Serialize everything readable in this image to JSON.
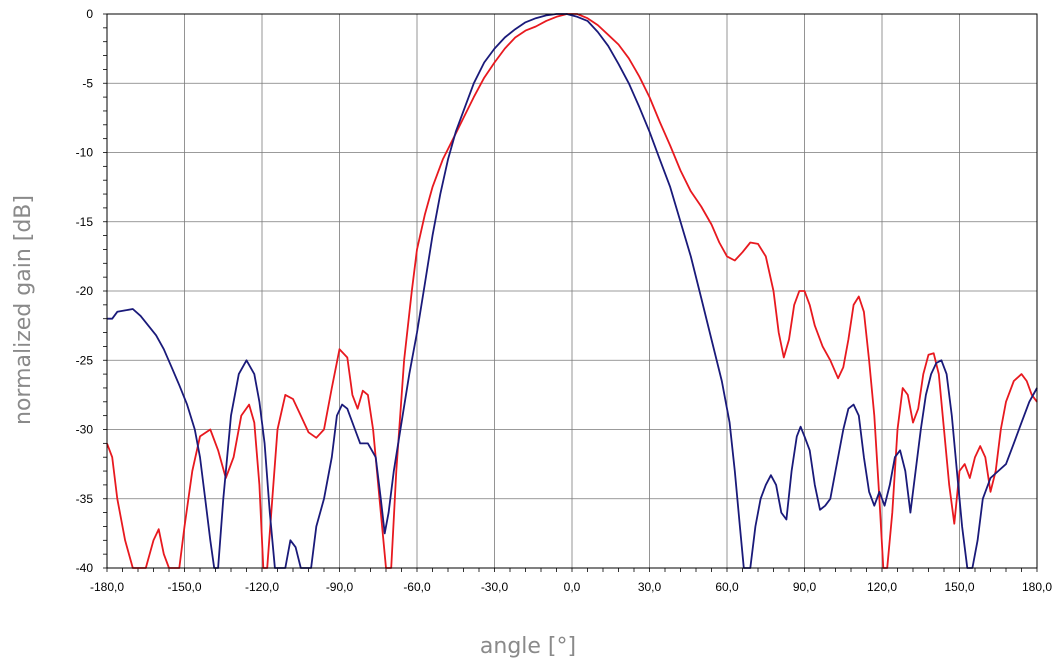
{
  "chart_data": {
    "type": "line",
    "title": "",
    "xlabel": "angle [°]",
    "ylabel": "normalized gain [dB]",
    "xlim": [
      -180,
      180
    ],
    "ylim": [
      -40,
      0
    ],
    "grid": true,
    "x_ticks": [
      -180,
      -150,
      -120,
      -90,
      -60,
      -30,
      0,
      30,
      60,
      90,
      120,
      150,
      180
    ],
    "x_tick_labels": [
      "-180,0",
      "-150,0",
      "-120,0",
      "-90,0",
      "-60,0",
      "-30,0",
      "0,0",
      "30,0",
      "60,0",
      "90,0",
      "120,0",
      "150,0",
      "180,0"
    ],
    "y_ticks": [
      0,
      -5,
      -10,
      -15,
      -20,
      -25,
      -30,
      -35,
      -40
    ],
    "y_tick_labels": [
      "0",
      "-5",
      "-10",
      "-15",
      "-20",
      "-25",
      "-30",
      "-35",
      "-40"
    ],
    "series": [
      {
        "color": "#e8191f",
        "points": [
          [
            -180,
            -31
          ],
          [
            -178,
            -32
          ],
          [
            -176,
            -35
          ],
          [
            -173,
            -38
          ],
          [
            -170,
            -40
          ],
          [
            -165,
            -40
          ],
          [
            -162,
            -38
          ],
          [
            -160,
            -37.2
          ],
          [
            -158,
            -39
          ],
          [
            -156,
            -40
          ],
          [
            -152,
            -40
          ],
          [
            -150,
            -37
          ],
          [
            -147,
            -33
          ],
          [
            -144,
            -30.5
          ],
          [
            -140,
            -30
          ],
          [
            -137,
            -31.5
          ],
          [
            -134,
            -33.5
          ],
          [
            -131,
            -32
          ],
          [
            -128,
            -29
          ],
          [
            -125,
            -28.2
          ],
          [
            -123,
            -29.5
          ],
          [
            -121,
            -34
          ],
          [
            -119.5,
            -40
          ],
          [
            -118,
            -40
          ],
          [
            -116,
            -35
          ],
          [
            -114,
            -30
          ],
          [
            -111,
            -27.5
          ],
          [
            -108,
            -27.8
          ],
          [
            -105,
            -29
          ],
          [
            -102,
            -30.2
          ],
          [
            -99,
            -30.6
          ],
          [
            -96,
            -30
          ],
          [
            -93,
            -27
          ],
          [
            -90,
            -24.2
          ],
          [
            -87,
            -24.8
          ],
          [
            -85,
            -27.5
          ],
          [
            -83,
            -28.5
          ],
          [
            -81,
            -27.2
          ],
          [
            -79,
            -27.5
          ],
          [
            -77,
            -30
          ],
          [
            -74,
            -36
          ],
          [
            -72,
            -40
          ],
          [
            -70,
            -40
          ],
          [
            -68,
            -33
          ],
          [
            -65,
            -25
          ],
          [
            -62,
            -20
          ],
          [
            -60,
            -17
          ],
          [
            -57,
            -14.5
          ],
          [
            -54,
            -12.5
          ],
          [
            -50,
            -10.5
          ],
          [
            -46,
            -9
          ],
          [
            -42,
            -7.5
          ],
          [
            -38,
            -6
          ],
          [
            -34,
            -4.6
          ],
          [
            -30,
            -3.5
          ],
          [
            -26,
            -2.5
          ],
          [
            -22,
            -1.7
          ],
          [
            -18,
            -1.2
          ],
          [
            -14,
            -0.9
          ],
          [
            -10,
            -0.5
          ],
          [
            -6,
            -0.2
          ],
          [
            -2,
            0
          ],
          [
            2,
            0
          ],
          [
            6,
            -0.3
          ],
          [
            10,
            -0.8
          ],
          [
            14,
            -1.5
          ],
          [
            18,
            -2.2
          ],
          [
            22,
            -3.2
          ],
          [
            26,
            -4.5
          ],
          [
            30,
            -6
          ],
          [
            34,
            -7.8
          ],
          [
            38,
            -9.5
          ],
          [
            42,
            -11.3
          ],
          [
            46,
            -12.8
          ],
          [
            50,
            -13.9
          ],
          [
            54,
            -15.2
          ],
          [
            57,
            -16.5
          ],
          [
            60,
            -17.5
          ],
          [
            63,
            -17.8
          ],
          [
            66,
            -17.2
          ],
          [
            69,
            -16.5
          ],
          [
            72,
            -16.6
          ],
          [
            75,
            -17.5
          ],
          [
            78,
            -20
          ],
          [
            80,
            -23
          ],
          [
            82,
            -24.8
          ],
          [
            84,
            -23.5
          ],
          [
            86,
            -21
          ],
          [
            88,
            -20
          ],
          [
            90,
            -20
          ],
          [
            92,
            -21
          ],
          [
            94,
            -22.5
          ],
          [
            97,
            -24
          ],
          [
            100,
            -25
          ],
          [
            103,
            -26.3
          ],
          [
            105,
            -25.5
          ],
          [
            107,
            -23.5
          ],
          [
            109,
            -21
          ],
          [
            111,
            -20.4
          ],
          [
            113,
            -21.5
          ],
          [
            115,
            -25
          ],
          [
            117,
            -29
          ],
          [
            119,
            -35
          ],
          [
            120.5,
            -40
          ],
          [
            122,
            -40
          ],
          [
            124,
            -36
          ],
          [
            126,
            -30
          ],
          [
            128,
            -27
          ],
          [
            130,
            -27.5
          ],
          [
            132,
            -29.5
          ],
          [
            134,
            -28.5
          ],
          [
            136,
            -26
          ],
          [
            138,
            -24.6
          ],
          [
            140,
            -24.5
          ],
          [
            142,
            -26
          ],
          [
            144,
            -30
          ],
          [
            146,
            -34
          ],
          [
            148,
            -36.8
          ],
          [
            150,
            -33
          ],
          [
            152,
            -32.5
          ],
          [
            154,
            -33.5
          ],
          [
            156,
            -32
          ],
          [
            158,
            -31.2
          ],
          [
            160,
            -32
          ],
          [
            162,
            -34.5
          ],
          [
            164,
            -33
          ],
          [
            166,
            -30
          ],
          [
            168,
            -28
          ],
          [
            171,
            -26.5
          ],
          [
            174,
            -26
          ],
          [
            176,
            -26.5
          ],
          [
            178,
            -27.5
          ],
          [
            180,
            -28
          ]
        ]
      },
      {
        "color": "#1a1a7a",
        "points": [
          [
            -180,
            -22
          ],
          [
            -178,
            -22
          ],
          [
            -176,
            -21.5
          ],
          [
            -173,
            -21.4
          ],
          [
            -170,
            -21.3
          ],
          [
            -167,
            -21.8
          ],
          [
            -164,
            -22.5
          ],
          [
            -161,
            -23.2
          ],
          [
            -158,
            -24.2
          ],
          [
            -155,
            -25.5
          ],
          [
            -152,
            -26.8
          ],
          [
            -149,
            -28.2
          ],
          [
            -146,
            -30
          ],
          [
            -144,
            -32
          ],
          [
            -142,
            -35
          ],
          [
            -140,
            -38
          ],
          [
            -138.5,
            -40
          ],
          [
            -137,
            -40
          ],
          [
            -135,
            -35
          ],
          [
            -132,
            -29
          ],
          [
            -129,
            -26
          ],
          [
            -126,
            -25
          ],
          [
            -123,
            -26
          ],
          [
            -121,
            -28
          ],
          [
            -119,
            -31
          ],
          [
            -117,
            -36
          ],
          [
            -115,
            -40
          ],
          [
            -111,
            -40
          ],
          [
            -109,
            -38
          ],
          [
            -107,
            -38.5
          ],
          [
            -105,
            -40
          ],
          [
            -101,
            -40
          ],
          [
            -99,
            -37
          ],
          [
            -96,
            -35
          ],
          [
            -93,
            -32
          ],
          [
            -91,
            -29
          ],
          [
            -89,
            -28.2
          ],
          [
            -87,
            -28.5
          ],
          [
            -84,
            -30
          ],
          [
            -82,
            -31
          ],
          [
            -79,
            -31
          ],
          [
            -76,
            -32
          ],
          [
            -74,
            -35
          ],
          [
            -72.5,
            -37.5
          ],
          [
            -71,
            -36
          ],
          [
            -69,
            -33
          ],
          [
            -66,
            -29.5
          ],
          [
            -63,
            -26
          ],
          [
            -60,
            -23
          ],
          [
            -57,
            -19.5
          ],
          [
            -54,
            -16
          ],
          [
            -51,
            -13
          ],
          [
            -48,
            -10.5
          ],
          [
            -45,
            -8.5
          ],
          [
            -42,
            -7
          ],
          [
            -38,
            -5
          ],
          [
            -34,
            -3.5
          ],
          [
            -30,
            -2.5
          ],
          [
            -26,
            -1.7
          ],
          [
            -22,
            -1.1
          ],
          [
            -18,
            -0.6
          ],
          [
            -14,
            -0.3
          ],
          [
            -10,
            -0.1
          ],
          [
            -6,
            0
          ],
          [
            -2,
            0
          ],
          [
            2,
            -0.2
          ],
          [
            6,
            -0.5
          ],
          [
            10,
            -1.3
          ],
          [
            14,
            -2.3
          ],
          [
            18,
            -3.6
          ],
          [
            22,
            -5
          ],
          [
            26,
            -6.7
          ],
          [
            30,
            -8.5
          ],
          [
            34,
            -10.5
          ],
          [
            38,
            -12.5
          ],
          [
            42,
            -15
          ],
          [
            46,
            -17.5
          ],
          [
            50,
            -20.5
          ],
          [
            54,
            -23.5
          ],
          [
            58,
            -26.5
          ],
          [
            61,
            -29.5
          ],
          [
            63,
            -33
          ],
          [
            65,
            -37
          ],
          [
            66.5,
            -40
          ],
          [
            69,
            -40
          ],
          [
            71,
            -37
          ],
          [
            73,
            -35
          ],
          [
            75,
            -34
          ],
          [
            77,
            -33.3
          ],
          [
            79,
            -34
          ],
          [
            81,
            -36
          ],
          [
            83,
            -36.5
          ],
          [
            85,
            -33
          ],
          [
            87,
            -30.5
          ],
          [
            88.5,
            -29.8
          ],
          [
            90,
            -30.5
          ],
          [
            92,
            -31.5
          ],
          [
            94,
            -34
          ],
          [
            96,
            -35.8
          ],
          [
            98,
            -35.5
          ],
          [
            100,
            -35
          ],
          [
            102,
            -33
          ],
          [
            105,
            -30
          ],
          [
            107,
            -28.5
          ],
          [
            109,
            -28.2
          ],
          [
            111,
            -29
          ],
          [
            113,
            -32
          ],
          [
            115,
            -34.5
          ],
          [
            117,
            -35.5
          ],
          [
            119,
            -34.5
          ],
          [
            121,
            -35.5
          ],
          [
            123,
            -34
          ],
          [
            125,
            -32
          ],
          [
            127,
            -31.5
          ],
          [
            129,
            -33
          ],
          [
            131,
            -36
          ],
          [
            133,
            -33
          ],
          [
            135,
            -30
          ],
          [
            137,
            -27.5
          ],
          [
            139,
            -26
          ],
          [
            141,
            -25.2
          ],
          [
            143,
            -25
          ],
          [
            145,
            -26
          ],
          [
            147,
            -29
          ],
          [
            149,
            -33
          ],
          [
            151,
            -37
          ],
          [
            153,
            -40
          ],
          [
            155,
            -40
          ],
          [
            157,
            -38
          ],
          [
            159,
            -35
          ],
          [
            162,
            -33.5
          ],
          [
            165,
            -33
          ],
          [
            168,
            -32.5
          ],
          [
            171,
            -31
          ],
          [
            174,
            -29.5
          ],
          [
            177,
            -28
          ],
          [
            180,
            -27
          ]
        ]
      }
    ]
  }
}
